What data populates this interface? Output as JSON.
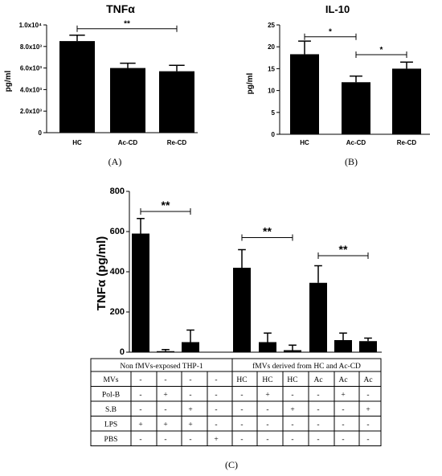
{
  "chart_data": [
    {
      "id": "A",
      "type": "bar",
      "title": "TNFα",
      "panel_label": "(A)",
      "ylabel": "pg/ml",
      "categories": [
        "HC",
        "Ac-CD",
        "Re-CD"
      ],
      "values": [
        8500,
        6000,
        5700
      ],
      "errors": [
        550,
        450,
        550
      ],
      "ylim": [
        0,
        10000
      ],
      "yticks": [
        0,
        2000,
        4000,
        6000,
        8000,
        10000
      ],
      "ytick_labels": [
        "0",
        "2.0x10³",
        "4.0x10³",
        "6.0x10³",
        "8.0x10³",
        "1.0x10⁴"
      ],
      "significance": [
        {
          "from": 0,
          "to": 2,
          "y": 9650,
          "label": "**"
        }
      ]
    },
    {
      "id": "B",
      "type": "bar",
      "title": "IL-10",
      "panel_label": "(B)",
      "ylabel": "pg/ml",
      "categories": [
        "HC",
        "Ac-CD",
        "Re-CD"
      ],
      "values": [
        18.3,
        11.9,
        15.0
      ],
      "errors": [
        3.0,
        1.4,
        1.5
      ],
      "ylim": [
        0,
        25
      ],
      "yticks": [
        0,
        5,
        10,
        15,
        20,
        25
      ],
      "ytick_labels": [
        "0",
        "5",
        "10",
        "15",
        "20",
        "25"
      ],
      "significance": [
        {
          "from": 0,
          "to": 1,
          "y": 22.3,
          "label": "*"
        },
        {
          "from": 1,
          "to": 2,
          "y": 18.2,
          "label": "*"
        }
      ]
    },
    {
      "id": "C",
      "type": "bar",
      "panel_label": "(C)",
      "ylabel": "TNFα (pg/ml)",
      "ylim": [
        0,
        800
      ],
      "yticks": [
        0,
        200,
        400,
        600,
        800
      ],
      "ytick_labels": [
        "0",
        "200",
        "400",
        "600",
        "800"
      ],
      "values": [
        590,
        5,
        50,
        0,
        420,
        50,
        10,
        345,
        60,
        55
      ],
      "errors": [
        75,
        8,
        60,
        0,
        90,
        45,
        25,
        85,
        35,
        15
      ],
      "significance": [
        {
          "from": 0,
          "to": 2,
          "y": 700,
          "label": "**"
        },
        {
          "from": 4,
          "to": 6,
          "y": 570,
          "label": "**"
        },
        {
          "from": 7,
          "to": 9,
          "y": 480,
          "label": "**"
        }
      ],
      "table": {
        "groups": [
          {
            "label": "Non fMVs-exposed THP-1",
            "span": 4
          },
          {
            "label": "fMVs derived from HC and Ac-CD",
            "span": 6
          }
        ],
        "rows": [
          {
            "label": "MVs",
            "cells": [
              "-",
              "-",
              "-",
              "-",
              "HC",
              "HC",
              "HC",
              "Ac",
              "Ac",
              "Ac"
            ]
          },
          {
            "label": "Pol-B",
            "cells": [
              "-",
              "+",
              "-",
              "-",
              "-",
              "+",
              "-",
              "-",
              "+",
              "-"
            ]
          },
          {
            "label": "S.B",
            "cells": [
              "-",
              "-",
              "+",
              "-",
              "-",
              "-",
              "+",
              "-",
              "-",
              "+"
            ]
          },
          {
            "label": "LPS",
            "cells": [
              "+",
              "+",
              "+",
              "-",
              "-",
              "-",
              "-",
              "-",
              "-",
              "-"
            ]
          },
          {
            "label": "PBS",
            "cells": [
              "-",
              "-",
              "-",
              "+",
              "-",
              "-",
              "-",
              "-",
              "-",
              "-"
            ]
          }
        ]
      }
    }
  ]
}
